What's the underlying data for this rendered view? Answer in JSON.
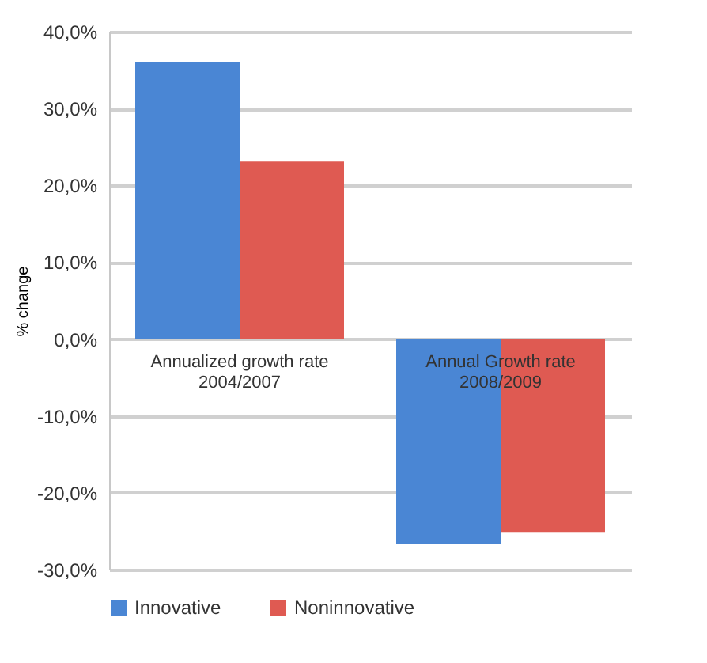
{
  "chart_data": {
    "type": "bar",
    "ylabel": "% change",
    "categories": [
      "Annualized growth rate 2004/2007",
      "Annual Growth rate 2008/2009"
    ],
    "series": [
      {
        "name": "Innovative",
        "color": "#4a86d4",
        "values": [
          36.1,
          -26.6
        ]
      },
      {
        "name": "Noninnovative",
        "color": "#df5a52",
        "values": [
          23.1,
          -25.2
        ]
      }
    ],
    "ylim": [
      -30,
      40
    ],
    "yticks": [
      {
        "value": -30,
        "label": "-30,0%"
      },
      {
        "value": -20,
        "label": "-20,0%"
      },
      {
        "value": -10,
        "label": "-10,0%"
      },
      {
        "value": 0,
        "label": "0,0%"
      },
      {
        "value": 10,
        "label": "10,0%"
      },
      {
        "value": 20,
        "label": "20,0%"
      },
      {
        "value": 30,
        "label": "30,0%"
      },
      {
        "value": 40,
        "label": "40,0%"
      }
    ],
    "grid": "y",
    "legend": "bottom"
  }
}
